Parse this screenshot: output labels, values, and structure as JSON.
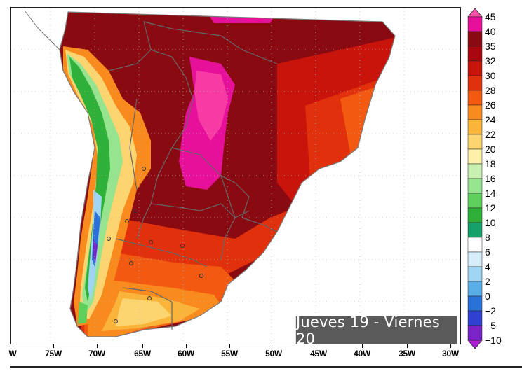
{
  "map": {
    "date_label": "Jueves 19 - Viernes 20",
    "longitude_labels": [
      "W",
      "75W",
      "70W",
      "65W",
      "60W",
      "55W",
      "50W",
      "45W",
      "40W",
      "35W",
      "30W"
    ],
    "colorbar": {
      "labels": [
        "45",
        "40",
        "35",
        "32",
        "30",
        "28",
        "26",
        "24",
        "22",
        "20",
        "18",
        "16",
        "14",
        "12",
        "10",
        "8",
        "6",
        "4",
        "2",
        "0",
        "−2",
        "−5",
        "−10"
      ],
      "colors": [
        "#ff4fa8",
        "#e6109a",
        "#8a0a12",
        "#a8060e",
        "#c9140c",
        "#e0300c",
        "#f25a12",
        "#f98a1e",
        "#fbb43a",
        "#fcd470",
        "#fdf0a8",
        "#c8f0b0",
        "#96e48e",
        "#5cd05a",
        "#2fb039",
        "#16a06a",
        "#ffffff",
        "#d6eefa",
        "#9fd4f2",
        "#5aaee8",
        "#2a72d8",
        "#3040d0",
        "#7a24c8",
        "#b020d8"
      ]
    },
    "colors": {
      "ocean": "#ffffff",
      "coast": "#7a7a7a",
      "border": "#666666"
    }
  }
}
